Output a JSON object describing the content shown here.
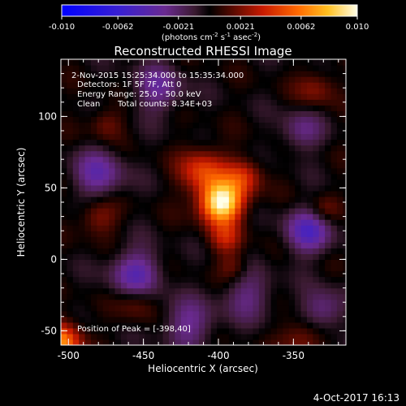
{
  "chart_data": {
    "type": "heatmap",
    "title": "Reconstructed RHESSI Image",
    "colorbar": {
      "ticks": [
        "-0.010",
        "-0.0062",
        "-0.0021",
        "0.0021",
        "0.0062",
        "0.010"
      ],
      "range": [
        -0.01,
        0.01
      ],
      "unit_main": "(photons cm",
      "unit_exp1": "-2",
      "unit_mid": " s",
      "unit_exp2": "-1",
      "unit_end": " asec",
      "unit_exp3": "-2",
      "unit_close": ")"
    },
    "annotations": {
      "time": "2-Nov-2015 15:25:34.000 to 15:35:34.000",
      "detectors": "Detectors: 1F 5F 7F, Att 0",
      "energy": "Energy Range: 25.0 - 50.0 keV",
      "algorithm": "Clean",
      "counts": "Total counts: 8.34E+03",
      "peak": "Position of Peak = [-398,40]"
    },
    "xlabel": "Heliocentric X (arcsec)",
    "ylabel": "Heliocentric Y (arcsec)",
    "xlim": [
      -505,
      -315
    ],
    "ylim": [
      -60,
      140
    ],
    "x_ticks": [
      "-500",
      "-450",
      "-400",
      "-350"
    ],
    "y_ticks": [
      "-50",
      "0",
      "50",
      "100"
    ],
    "peak_position": [
      -398,
      40
    ],
    "sources": [
      {
        "x": -398,
        "y": 40,
        "sigma": 10,
        "amp": 0.01
      },
      {
        "x": -410,
        "y": 62,
        "sigma": 11,
        "amp": 0.0045
      },
      {
        "x": -383,
        "y": 58,
        "sigma": 9,
        "amp": 0.0035
      },
      {
        "x": -395,
        "y": 15,
        "sigma": 8,
        "amp": 0.003
      },
      {
        "x": -390,
        "y": -5,
        "sigma": 7,
        "amp": 0.002
      },
      {
        "x": -505,
        "y": -58,
        "sigma": 10,
        "amp": 0.0065
      },
      {
        "x": -480,
        "y": 30,
        "sigma": 9,
        "amp": 0.0025
      },
      {
        "x": -475,
        "y": 95,
        "sigma": 8,
        "amp": 0.002
      },
      {
        "x": -335,
        "y": 120,
        "sigma": 9,
        "amp": 0.0022
      },
      {
        "x": -455,
        "y": -30,
        "sigma": 9,
        "amp": 0.002
      },
      {
        "x": -345,
        "y": -55,
        "sigma": 10,
        "amp": 0.0025
      },
      {
        "x": -330,
        "y": 35,
        "sigma": 7,
        "amp": 0.0018
      }
    ],
    "negative_sources": [
      {
        "x": -480,
        "y": 60,
        "sigma": 12,
        "amp": 0.0035
      },
      {
        "x": -455,
        "y": -10,
        "sigma": 12,
        "amp": 0.004
      },
      {
        "x": -340,
        "y": 20,
        "sigma": 11,
        "amp": 0.0045
      },
      {
        "x": -440,
        "y": 120,
        "sigma": 12,
        "amp": 0.003
      },
      {
        "x": -345,
        "y": 90,
        "sigma": 10,
        "amp": 0.0025
      },
      {
        "x": -330,
        "y": -35,
        "sigma": 10,
        "amp": 0.003
      },
      {
        "x": -420,
        "y": -45,
        "sigma": 12,
        "amp": 0.003
      },
      {
        "x": -380,
        "y": -25,
        "sigma": 12,
        "amp": 0.0025
      }
    ]
  },
  "footer": {
    "timestamp": "4-Oct-2017 16:13"
  }
}
